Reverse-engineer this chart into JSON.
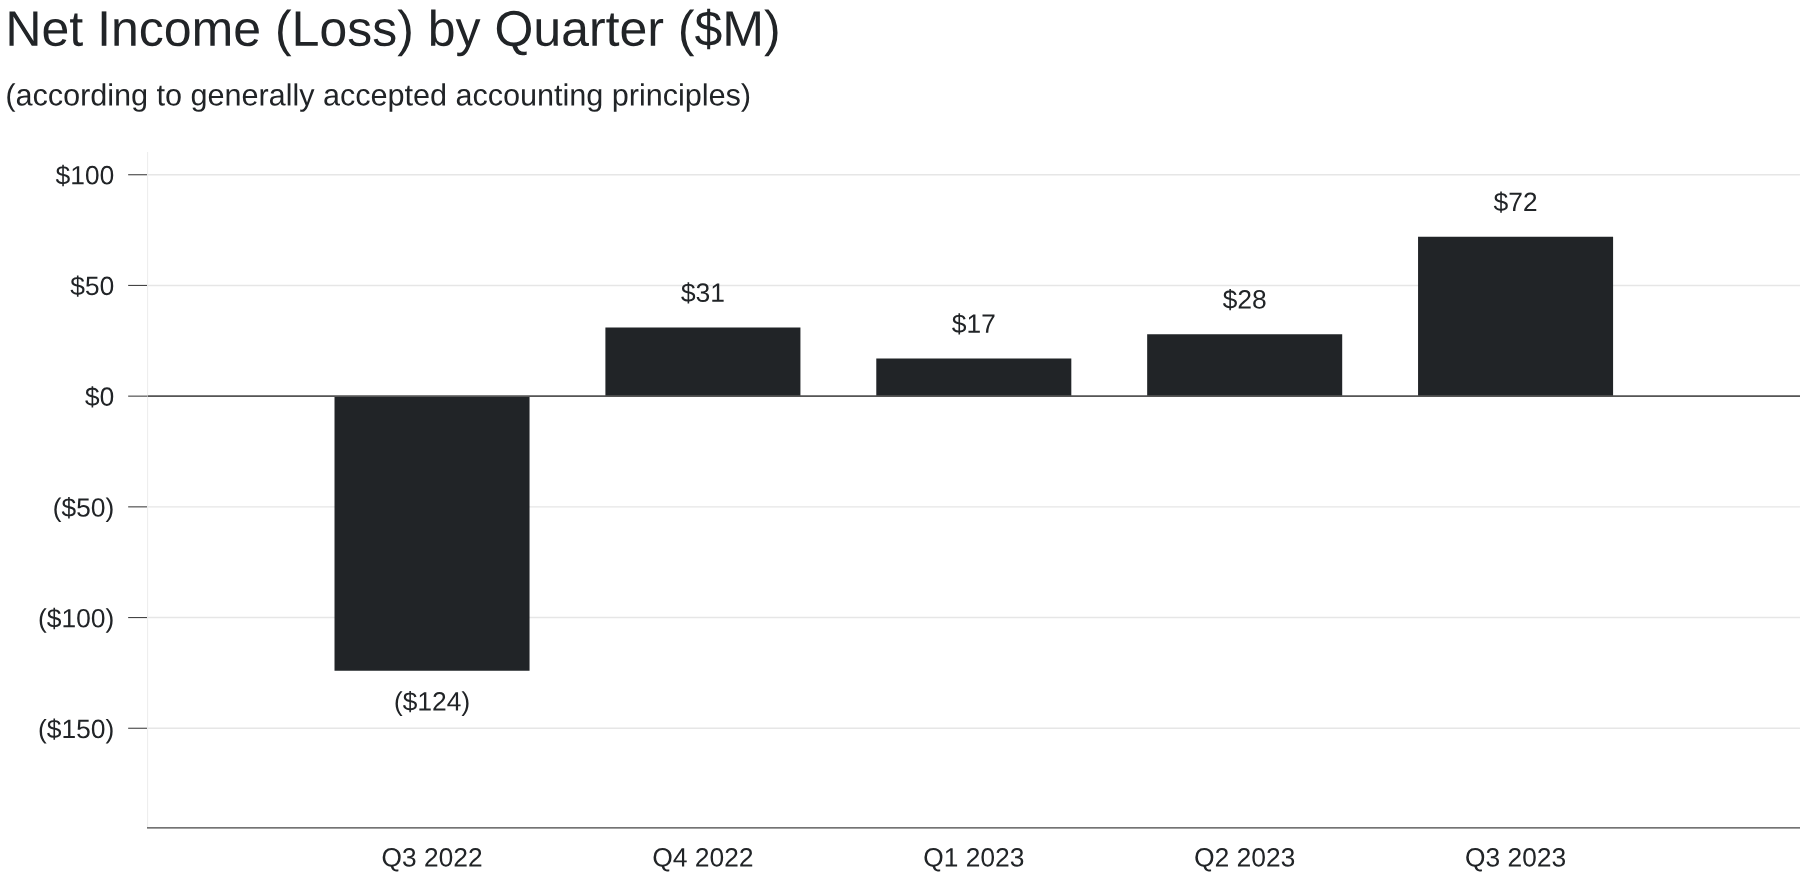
{
  "chart_data": {
    "type": "bar",
    "title": "Net Income (Loss) by Quarter ($M)",
    "subtitle": "(according to generally accepted accounting principles)",
    "categories": [
      "Q3 2022",
      "Q4 2022",
      "Q1 2023",
      "Q2 2023",
      "Q3 2023"
    ],
    "values": [
      -124,
      31,
      17,
      28,
      72
    ],
    "value_labels": [
      "($124)",
      "$31",
      "$17",
      "$28",
      "$72"
    ],
    "color": "#212427",
    "ylim": [
      -195,
      110
    ],
    "yticks": [
      {
        "value": 100,
        "label": "$100"
      },
      {
        "value": 50,
        "label": "$50"
      },
      {
        "value": 0,
        "label": "$0"
      },
      {
        "value": -50,
        "label": "($50)"
      },
      {
        "value": -100,
        "label": "($100)"
      },
      {
        "value": -150,
        "label": "($150)"
      }
    ],
    "grid": "y",
    "ref_lines": [
      {
        "axis": "y",
        "value": 0,
        "color": "#555555"
      }
    ]
  }
}
